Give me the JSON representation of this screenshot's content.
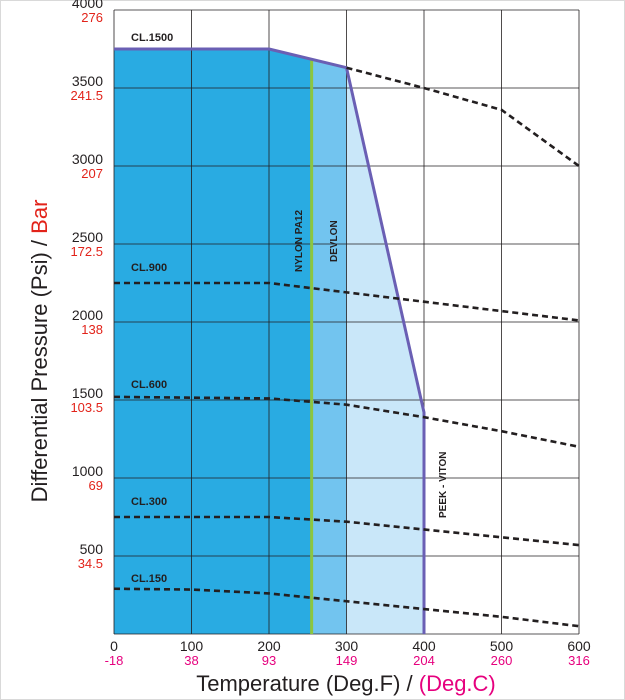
{
  "chart_data": {
    "type": "area",
    "x_axis": {
      "label_main": "Temperature  (Deg.F) / ",
      "label_unit": "(Deg.C)",
      "range": [
        0,
        600
      ],
      "ticks_f": [
        "0",
        "100",
        "200",
        "300",
        "400",
        "500",
        "600"
      ],
      "ticks_c": [
        "-18",
        "38",
        "93",
        "149",
        "204",
        "260",
        "316"
      ]
    },
    "y_axis": {
      "label_main": "Differential Pressure (Psi) / ",
      "label_unit": "Bar",
      "range": [
        0,
        4000
      ],
      "ticks_psi": [
        "500",
        "1000",
        "1500",
        "2000",
        "2500",
        "3000",
        "3500",
        "4000"
      ],
      "ticks_bar": [
        "34.5",
        "69",
        "103.5",
        "138",
        "172.5",
        "207",
        "241.5",
        "276"
      ]
    },
    "grid": true,
    "regions": [
      {
        "name": "NYLON PA12",
        "x_max": 255,
        "color": "#29abe2"
      },
      {
        "name": "DEVLON",
        "x_max": 300,
        "color": "#72c4ef"
      },
      {
        "name": "PEEK - VITON",
        "x_max": 400,
        "color": "#c9e7f9"
      }
    ],
    "envelope": [
      [
        0,
        3750
      ],
      [
        200,
        3750
      ],
      [
        300,
        3630
      ],
      [
        400,
        1420
      ],
      [
        400,
        0
      ]
    ],
    "boundary_color": "#6a5fb4",
    "nylon_line": {
      "x": 255,
      "color": "#8dc63f"
    },
    "class_curves": [
      {
        "name": "CL.1500",
        "points": [
          [
            300,
            3630
          ],
          [
            400,
            3500
          ],
          [
            500,
            3360
          ],
          [
            600,
            3000
          ]
        ]
      },
      {
        "name": "CL.900",
        "points": [
          [
            0,
            2250
          ],
          [
            200,
            2250
          ],
          [
            300,
            2190
          ],
          [
            400,
            2130
          ],
          [
            500,
            2070
          ],
          [
            600,
            2010
          ]
        ]
      },
      {
        "name": "CL.600",
        "points": [
          [
            0,
            1520
          ],
          [
            200,
            1510
          ],
          [
            300,
            1470
          ],
          [
            400,
            1390
          ],
          [
            500,
            1300
          ],
          [
            600,
            1200
          ]
        ]
      },
      {
        "name": "CL.300",
        "points": [
          [
            0,
            750
          ],
          [
            200,
            750
          ],
          [
            300,
            720
          ],
          [
            400,
            670
          ],
          [
            500,
            620
          ],
          [
            600,
            570
          ]
        ]
      },
      {
        "name": "CL.150",
        "points": [
          [
            0,
            290
          ],
          [
            100,
            285
          ],
          [
            200,
            260
          ],
          [
            300,
            210
          ],
          [
            400,
            160
          ],
          [
            500,
            110
          ],
          [
            600,
            50
          ]
        ]
      }
    ],
    "labels": {
      "cl1500": "CL.1500",
      "cl900": "CL.900",
      "cl600": "CL.600",
      "cl300": "CL.300",
      "cl150": "CL.150",
      "nylon": "NYLON PA12",
      "devlon": "DEVLON",
      "peek": "PEEK - VITON"
    },
    "colors": {
      "celsius": "#e6007e",
      "bar": "#e2231a",
      "text": "#231f20"
    }
  }
}
